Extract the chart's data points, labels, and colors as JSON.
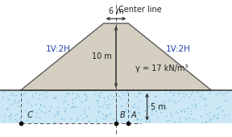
{
  "bg_color": "#ffffff",
  "soil_color": "#cce8f4",
  "soil_dot_color": "#5aade0",
  "embankment_color": "#d4cfc0",
  "embankment_edge_color": "#555555",
  "ground_line_color": "#333333",
  "dashed_line_color": "#555555",
  "arrow_color": "#333333",
  "text_color": "#222222",
  "label_color": "#2244aa",
  "half_top_m": 3,
  "height_m": 10,
  "slope_ratio": 2,
  "soil_depth_m": 5,
  "gamma_text": "γ = 17 kN/m³",
  "top_label": "6 m",
  "height_label": "10 m",
  "depth_label": "5 m",
  "slope_label_left": "1V:2H",
  "slope_label_right": "1V:2H",
  "center_label": "Center line",
  "point_A": "A",
  "point_B": "B",
  "point_C": "C",
  "fontsize": 7.5,
  "small_fontsize": 7.0,
  "label_fontsize": 7.5,
  "x_min": -28,
  "x_max": 28,
  "y_min": -7,
  "y_max": 13.5
}
